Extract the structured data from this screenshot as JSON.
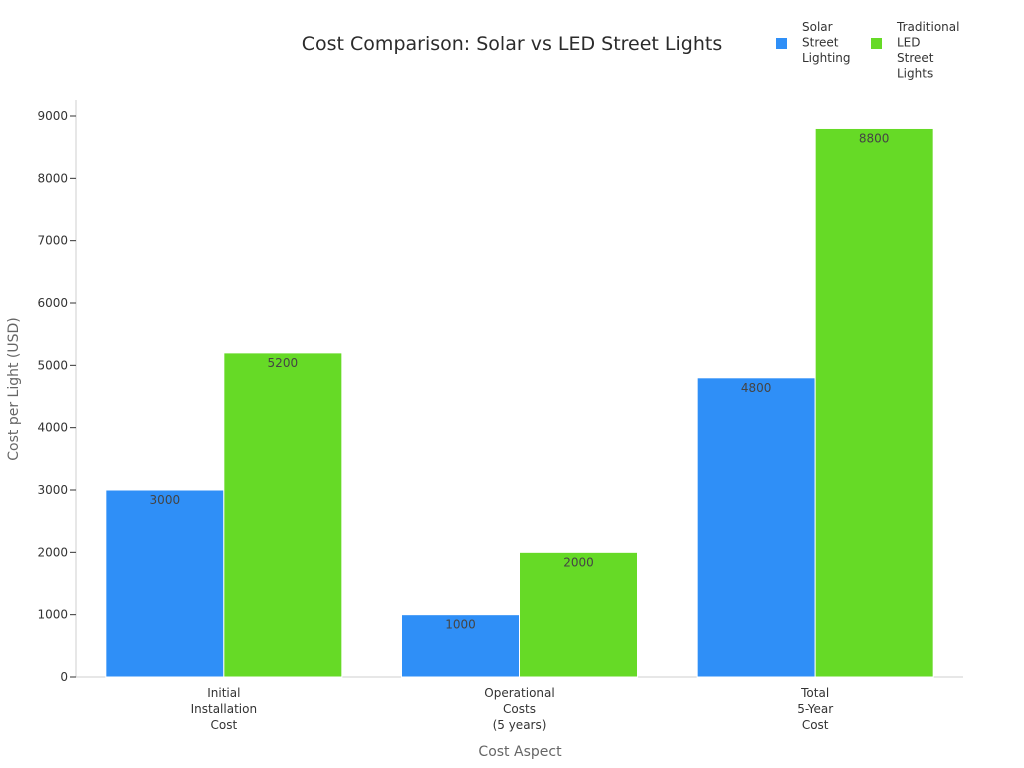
{
  "chart_data": {
    "type": "bar",
    "title": "Cost Comparison: Solar vs LED Street Lights",
    "xlabel": "Cost Aspect",
    "ylabel": "Cost per Light (USD)",
    "categories": [
      [
        "Initial",
        "Installation",
        "Cost"
      ],
      [
        "Operational",
        "Costs",
        "(5 years)"
      ],
      [
        "Total",
        "5-Year",
        "Cost"
      ]
    ],
    "series": [
      {
        "name": [
          "Solar",
          "Street",
          "Lighting"
        ],
        "values": [
          3000,
          1000,
          4800
        ],
        "color": "#2f8ff7"
      },
      {
        "name": [
          "Traditional",
          "LED",
          "Street",
          "Lights"
        ],
        "values": [
          5200,
          2000,
          8800
        ],
        "color": "#66da26"
      }
    ],
    "ylim": [
      0,
      9000
    ],
    "yticks": [
      0,
      1000,
      2000,
      3000,
      4000,
      5000,
      6000,
      7000,
      8000,
      9000
    ],
    "grid": false,
    "legend_position": "top-right",
    "data_labels": true
  }
}
